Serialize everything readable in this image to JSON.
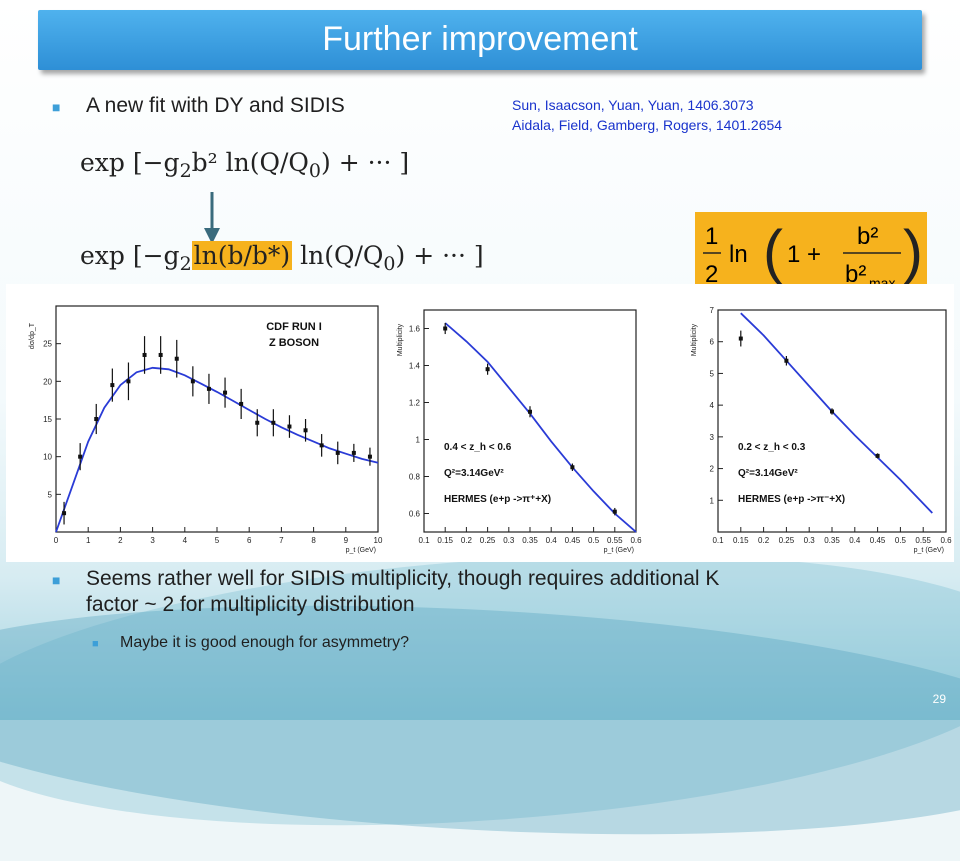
{
  "slide": {
    "title": "Further improvement",
    "bullet1": "A new fit with DY and SIDIS",
    "references": [
      "Sun, Isaacson, Yuan, Yuan, 1406.3073",
      "Aidala, Field, Gamberg, Rogers, 1401.2654"
    ],
    "formula1": {
      "prefix": "exp [−g",
      "sub": "2",
      "body": "b² ln(Q/Q",
      "sub0": "0",
      "suffix": ") + ··· ]"
    },
    "formula2": {
      "prefix": "exp [−g",
      "sub": "2",
      "highlight": "ln(b/b*)",
      "body": " ln(Q/Q",
      "sub0": "0",
      "suffix": ") + ··· ]"
    },
    "box_formula": {
      "half": "1",
      "half_den": "2",
      "ln": "ln",
      "one_plus": "1 +",
      "num": "b²",
      "den": "b²",
      "den_sub": "max"
    },
    "bullet2": "Seems rather well for SIDIS multiplicity, though requires additional K factor ~ 2 for multiplicity distribution",
    "bullet2_line1": "Seems rather well for SIDIS multiplicity, though requires additional K",
    "bullet2_line2": "factor ~ 2 for multiplicity distribution",
    "sub_bullet": "Maybe it is good enough for asymmetry?",
    "page_number": "29",
    "colors": {
      "title_bar": "#2e8fd6",
      "highlight": "#f6b21d",
      "reference": "#1933cc",
      "curve": "#2a3bd6"
    }
  },
  "chart_data": [
    {
      "type": "scatter",
      "title": "CDF RUN I Z BOSON",
      "label_line1": "CDF RUN I",
      "label_line2": "Z BOSON",
      "xlabel": "p_t (GeV)",
      "ylabel": "dσ/dp_T",
      "xlim": [
        0,
        10
      ],
      "ylim": [
        0,
        30
      ],
      "xticks": [
        "0",
        "1",
        "2",
        "3",
        "4",
        "5",
        "6",
        "7",
        "8",
        "9",
        "10"
      ],
      "yticks": [
        "5",
        "10",
        "15",
        "20",
        "25"
      ],
      "points": [
        [
          0.25,
          2.5,
          1.5
        ],
        [
          0.75,
          10,
          1.8
        ],
        [
          1.25,
          15,
          2
        ],
        [
          1.75,
          19.5,
          2.2
        ],
        [
          2.25,
          20,
          2.5
        ],
        [
          2.75,
          23.5,
          2.5
        ],
        [
          3.25,
          23.5,
          2.5
        ],
        [
          3.75,
          23,
          2.5
        ],
        [
          4.25,
          20,
          2
        ],
        [
          4.75,
          19,
          2
        ],
        [
          5.25,
          18.5,
          2
        ],
        [
          5.75,
          17,
          2
        ],
        [
          6.25,
          14.5,
          1.8
        ],
        [
          6.75,
          14.5,
          1.8
        ],
        [
          7.25,
          14,
          1.5
        ],
        [
          7.75,
          13.5,
          1.5
        ],
        [
          8.25,
          11.5,
          1.5
        ],
        [
          8.75,
          10.5,
          1.5
        ],
        [
          9.25,
          10.5,
          1.2
        ],
        [
          9.75,
          10,
          1.2
        ]
      ],
      "curve": [
        [
          0,
          0
        ],
        [
          0.5,
          6
        ],
        [
          1,
          12
        ],
        [
          1.5,
          16.5
        ],
        [
          2,
          19.5
        ],
        [
          2.5,
          21.2
        ],
        [
          3,
          21.8
        ],
        [
          3.5,
          21.6
        ],
        [
          4,
          20.8
        ],
        [
          4.5,
          19.7
        ],
        [
          5,
          18.6
        ],
        [
          5.5,
          17.4
        ],
        [
          6,
          16.2
        ],
        [
          6.5,
          15
        ],
        [
          7,
          13.9
        ],
        [
          7.5,
          12.9
        ],
        [
          8,
          12
        ],
        [
          8.5,
          11.1
        ],
        [
          9,
          10.4
        ],
        [
          9.5,
          9.7
        ],
        [
          10,
          9.2
        ]
      ]
    },
    {
      "type": "scatter",
      "ylabel": "Multiplicity",
      "xlabel": "p_t (GeV)",
      "annotations": [
        "0.4 < z_h < 0.6",
        "Q²=3.14GeV²",
        "HERMES (e+p ->π⁺+X)"
      ],
      "xlim": [
        0.1,
        0.6
      ],
      "ylim": [
        0.5,
        1.7
      ],
      "xticks": [
        "0.1",
        "0.15",
        "0.2",
        "0.25",
        "0.3",
        "0.35",
        "0.4",
        "0.45",
        "0.5",
        "0.55",
        "0.6"
      ],
      "yticks": [
        "0.6",
        "0.8",
        "1",
        "1.2",
        "1.4",
        "1.6"
      ],
      "points": [
        [
          0.15,
          1.6,
          0.03
        ],
        [
          0.25,
          1.38,
          0.03
        ],
        [
          0.35,
          1.15,
          0.03
        ],
        [
          0.45,
          0.85,
          0.02
        ],
        [
          0.55,
          0.61,
          0.02
        ]
      ],
      "curve": [
        [
          0.15,
          1.63
        ],
        [
          0.2,
          1.53
        ],
        [
          0.25,
          1.42
        ],
        [
          0.3,
          1.28
        ],
        [
          0.35,
          1.14
        ],
        [
          0.4,
          0.99
        ],
        [
          0.45,
          0.85
        ],
        [
          0.5,
          0.72
        ],
        [
          0.55,
          0.6
        ],
        [
          0.6,
          0.5
        ]
      ]
    },
    {
      "type": "scatter",
      "ylabel": "Multiplicity",
      "xlabel": "p_t (GeV)",
      "annotations": [
        "0.2 < z_h < 0.3",
        "Q²=3.14GeV²",
        "HERMES (e+p ->π⁻+X)"
      ],
      "xlim": [
        0.1,
        0.6
      ],
      "ylim": [
        0,
        7
      ],
      "xticks": [
        "0.1",
        "0.15",
        "0.2",
        "0.25",
        "0.3",
        "0.35",
        "0.4",
        "0.45",
        "0.5",
        "0.55",
        "0.6"
      ],
      "yticks": [
        "1",
        "2",
        "3",
        "4",
        "5",
        "6",
        "7"
      ],
      "points": [
        [
          0.15,
          6.1,
          0.25
        ],
        [
          0.25,
          5.4,
          0.15
        ],
        [
          0.35,
          3.8,
          0.1
        ],
        [
          0.45,
          2.4,
          0.08
        ]
      ],
      "curve": [
        [
          0.15,
          6.9
        ],
        [
          0.2,
          6.2
        ],
        [
          0.25,
          5.4
        ],
        [
          0.3,
          4.6
        ],
        [
          0.35,
          3.8
        ],
        [
          0.4,
          3.05
        ],
        [
          0.45,
          2.35
        ],
        [
          0.5,
          1.65
        ],
        [
          0.55,
          0.9
        ],
        [
          0.57,
          0.6
        ]
      ]
    }
  ]
}
